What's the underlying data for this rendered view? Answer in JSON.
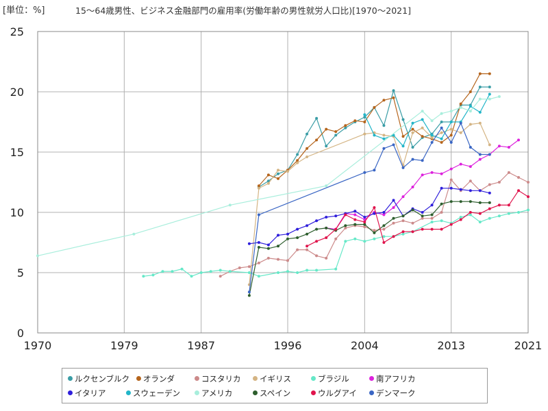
{
  "unit_label": "[単位：%]",
  "title": "15～64歳男性、ビジネス金融部門の雇用率(労働年齢の男性就労人口比)[1970～2021]",
  "chart_data": {
    "type": "line",
    "x_ticks": [
      "1970",
      "1979",
      "1987",
      "1996",
      "2004",
      "2013",
      "2021"
    ],
    "xlim": [
      1970,
      2021
    ],
    "y_ticks": [
      "0",
      "5",
      "10",
      "15",
      "20",
      "25"
    ],
    "ylim": [
      0,
      25
    ],
    "grid": true,
    "legend_position": "bottom",
    "series": [
      {
        "name": "ルクセンブルク",
        "color": "#3a9da6",
        "x": [
          1993,
          1994,
          1995,
          1996,
          1997,
          1998,
          1999,
          2000,
          2001,
          2002,
          2003,
          2004,
          2005,
          2006,
          2007,
          2008,
          2009,
          2010,
          2011,
          2012,
          2013,
          2014,
          2015,
          2016,
          2017
        ],
        "y": [
          12.1,
          12.6,
          13.2,
          13.5,
          14.8,
          16.5,
          17.8,
          15.5,
          16.4,
          17.0,
          17.5,
          17.9,
          18.7,
          17.2,
          20.1,
          17.7,
          15.4,
          16.2,
          16.5,
          17.5,
          17.5,
          18.9,
          18.9,
          20.4,
          20.4
        ]
      },
      {
        "name": "オランダ",
        "color": "#b5651d",
        "x": [
          1993,
          1994,
          1995,
          1996,
          1997,
          1998,
          1999,
          2000,
          2001,
          2002,
          2003,
          2004,
          2005,
          2006,
          2007,
          2008,
          2009,
          2010,
          2011,
          2012,
          2013,
          2014,
          2015,
          2016,
          2017
        ],
        "y": [
          12.2,
          13.1,
          12.8,
          13.5,
          14.3,
          15.3,
          16.0,
          16.9,
          16.7,
          17.2,
          17.6,
          17.5,
          18.7,
          19.3,
          19.5,
          16.3,
          16.9,
          16.3,
          16.1,
          15.8,
          16.4,
          19.0,
          20.0,
          21.5,
          21.5
        ]
      },
      {
        "name": "コスタリカ",
        "color": "#cc8a8a",
        "x": [
          1989,
          1990,
          1991,
          1992,
          1993,
          1994,
          1995,
          1996,
          1997,
          1998,
          1999,
          2000,
          2001,
          2002,
          2003,
          2004,
          2005,
          2006,
          2007,
          2008,
          2009,
          2010,
          2011,
          2012,
          2013,
          2014,
          2015,
          2016,
          2017,
          2018,
          2019,
          2020,
          2021
        ],
        "y": [
          4.7,
          5.1,
          5.4,
          5.5,
          5.8,
          6.2,
          6.1,
          6.0,
          6.9,
          6.9,
          6.4,
          6.2,
          7.8,
          8.7,
          8.9,
          8.8,
          8.5,
          8.6,
          9.1,
          9.3,
          9.1,
          9.5,
          9.5,
          10.0,
          12.7,
          11.8,
          12.6,
          11.8,
          12.3,
          12.5,
          13.3,
          12.9,
          12.5
        ]
      },
      {
        "name": "イギリス",
        "color": "#d4b483",
        "x": [
          1992,
          1993,
          1994,
          1995,
          1996,
          1997,
          1998,
          2004,
          2005,
          2006,
          2007,
          2008,
          2009,
          2010,
          2011,
          2012,
          2013,
          2014,
          2015,
          2016,
          2017
        ],
        "y": [
          4.0,
          12.0,
          12.4,
          13.5,
          13.4,
          14.1,
          14.6,
          16.5,
          16.6,
          16.4,
          16.3,
          13.9,
          16.6,
          17.0,
          16.2,
          16.6,
          16.9,
          16.6,
          17.3,
          17.4,
          15.6
        ]
      },
      {
        "name": "ブラジル",
        "color": "#66e8c8",
        "x": [
          1981,
          1982,
          1983,
          1984,
          1985,
          1986,
          1987,
          1988,
          1989,
          1990,
          1992,
          1993,
          1995,
          1996,
          1997,
          1998,
          1999,
          2001,
          2002,
          2003,
          2004,
          2005,
          2006,
          2007,
          2008,
          2009,
          2011,
          2012,
          2013,
          2014,
          2015,
          2016,
          2017,
          2018,
          2019,
          2020,
          2021
        ],
        "y": [
          4.7,
          4.8,
          5.1,
          5.1,
          5.3,
          4.7,
          5.0,
          5.1,
          5.2,
          5.1,
          5.0,
          4.7,
          5.0,
          5.1,
          5.0,
          5.2,
          5.2,
          5.3,
          7.6,
          7.8,
          7.6,
          7.8,
          8.0,
          8.0,
          8.2,
          8.4,
          9.2,
          9.3,
          9.1,
          9.6,
          9.8,
          9.2,
          9.5,
          9.7,
          9.9,
          10.0,
          10.2
        ]
      },
      {
        "name": "南アフリカ",
        "color": "#dd22dd",
        "x": [
          2000,
          2001,
          2002,
          2003,
          2004,
          2005,
          2006,
          2007,
          2008,
          2009,
          2010,
          2011,
          2012,
          2013,
          2014,
          2015,
          2016,
          2017,
          2018,
          2019,
          2020
        ],
        "y": [
          8.7,
          8.6,
          9.9,
          9.8,
          9.4,
          10.0,
          9.8,
          10.4,
          11.3,
          12.1,
          13.1,
          13.3,
          13.2,
          13.6,
          14.0,
          13.8,
          14.4,
          14.8,
          15.5,
          15.4,
          16.0
        ]
      },
      {
        "name": "イタリア",
        "color": "#2f1fdb",
        "x": [
          1992,
          1993,
          1994,
          1995,
          1996,
          1997,
          1998,
          1999,
          2000,
          2001,
          2002,
          2003,
          2004,
          2005,
          2006,
          2007,
          2008,
          2009,
          2010,
          2011,
          2012,
          2013,
          2014,
          2015,
          2016,
          2017
        ],
        "y": [
          7.4,
          7.5,
          7.3,
          8.1,
          8.2,
          8.6,
          8.9,
          9.3,
          9.6,
          9.7,
          9.9,
          10.1,
          9.6,
          9.9,
          10.0,
          11.0,
          9.7,
          10.3,
          10.0,
          10.6,
          12.0,
          12.0,
          11.9,
          11.8,
          11.8,
          11.6
        ]
      },
      {
        "name": "スウェーデン",
        "color": "#22b5c8",
        "x": [
          2004,
          2005,
          2006,
          2007,
          2008,
          2009,
          2010,
          2011,
          2012,
          2013,
          2014,
          2015,
          2016,
          2017
        ],
        "y": [
          18.1,
          16.4,
          16.1,
          16.4,
          15.5,
          17.4,
          17.7,
          16.4,
          16.1,
          17.5,
          17.5,
          18.8,
          18.3,
          19.8
        ]
      },
      {
        "name": "アメリカ",
        "color": "#a8eedc",
        "x": [
          1970,
          1980,
          1990,
          2000,
          2010,
          2011,
          2012,
          2013,
          2014,
          2015,
          2016,
          2017,
          2018
        ],
        "y": [
          6.4,
          8.2,
          10.6,
          12.2,
          18.4,
          17.6,
          18.2,
          18.4,
          18.7,
          18.4,
          19.4,
          19.4,
          19.6
        ]
      },
      {
        "name": "スペイン",
        "color": "#2d5e2d",
        "x": [
          1992,
          1993,
          1994,
          1995,
          1996,
          1997,
          1998,
          1999,
          2000,
          2001,
          2002,
          2003,
          2004,
          2005,
          2006,
          2007,
          2008,
          2009,
          2010,
          2011,
          2012,
          2013,
          2014,
          2015,
          2016,
          2017
        ],
        "y": [
          3.1,
          7.1,
          7.0,
          7.2,
          7.8,
          7.9,
          8.2,
          8.6,
          8.7,
          8.5,
          8.9,
          9.0,
          9.0,
          8.3,
          8.9,
          9.5,
          9.7,
          10.2,
          9.7,
          9.8,
          10.7,
          10.9,
          10.9,
          10.9,
          10.8,
          10.8
        ]
      },
      {
        "name": "ウルグアイ",
        "color": "#e0144c",
        "x": [
          1998,
          1999,
          2000,
          2001,
          2002,
          2003,
          2004,
          2005,
          2006,
          2007,
          2008,
          2009,
          2010,
          2011,
          2012,
          2013,
          2014,
          2015,
          2016,
          2017,
          2018,
          2019,
          2020,
          2021
        ],
        "y": [
          7.2,
          7.6,
          7.9,
          8.6,
          9.8,
          9.4,
          9.2,
          10.4,
          7.5,
          8.0,
          8.4,
          8.4,
          8.6,
          8.6,
          8.6,
          9.0,
          9.4,
          10.0,
          9.9,
          10.3,
          10.6,
          10.6,
          11.8,
          11.3
        ]
      },
      {
        "name": "デンマーク",
        "color": "#3a66c4",
        "x": [
          1992,
          1993,
          2004,
          2005,
          2006,
          2007,
          2008,
          2009,
          2010,
          2011,
          2012,
          2013,
          2014,
          2015,
          2016,
          2017
        ],
        "y": [
          3.4,
          9.8,
          13.3,
          13.5,
          15.3,
          15.6,
          13.7,
          14.4,
          14.3,
          15.8,
          17.0,
          15.8,
          17.4,
          15.4,
          14.8,
          14.8
        ]
      }
    ]
  }
}
